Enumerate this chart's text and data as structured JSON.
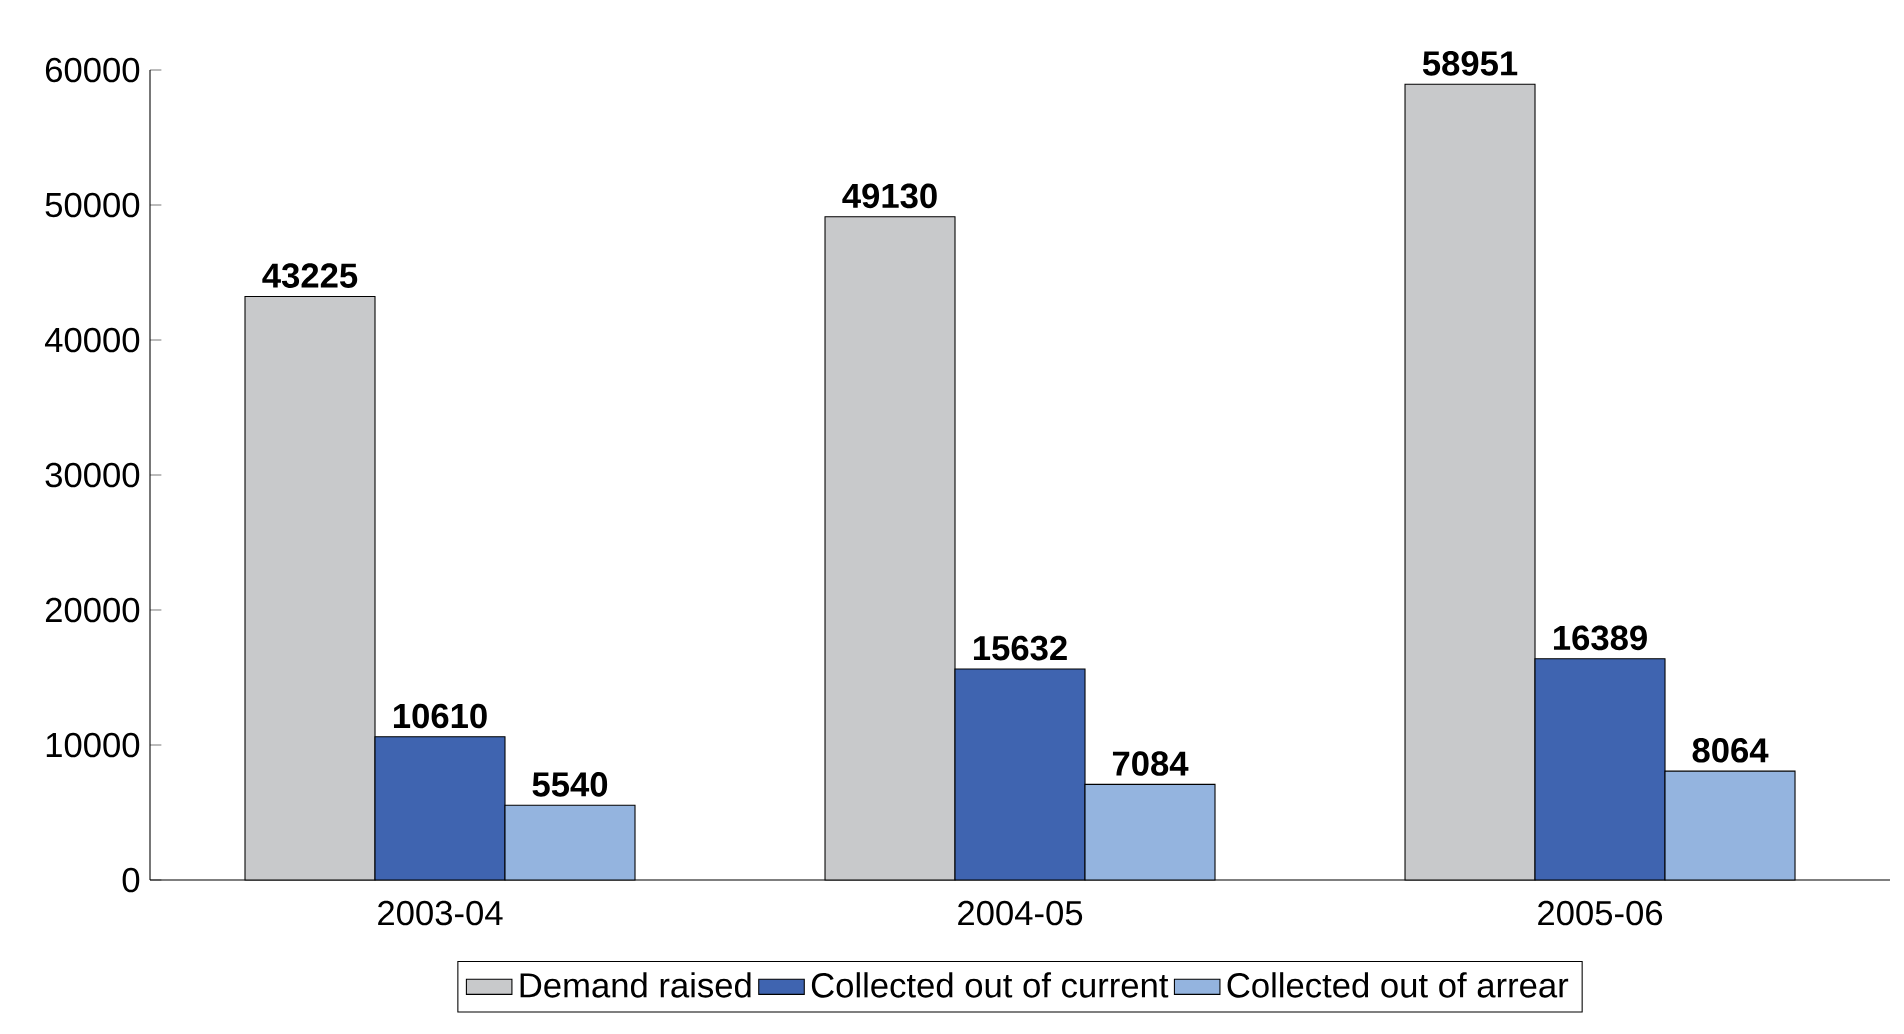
{
  "chart_data": {
    "type": "bar",
    "categories": [
      "2003-04",
      "2004-05",
      "2005-06"
    ],
    "series": [
      {
        "name": "Demand raised",
        "color": "#c8c9cb",
        "values": [
          43225,
          49130,
          58951
        ]
      },
      {
        "name": "Collected out of current",
        "color": "#3f64b0",
        "values": [
          10610,
          15632,
          16389
        ]
      },
      {
        "name": "Collected out of arrear",
        "color": "#94b4df",
        "values": [
          5540,
          7084,
          8064
        ]
      }
    ],
    "ylim": [
      0,
      60000
    ],
    "yticks": [
      0,
      10000,
      20000,
      30000,
      40000,
      50000,
      60000
    ],
    "data_labels": true,
    "legend": "bottom"
  }
}
